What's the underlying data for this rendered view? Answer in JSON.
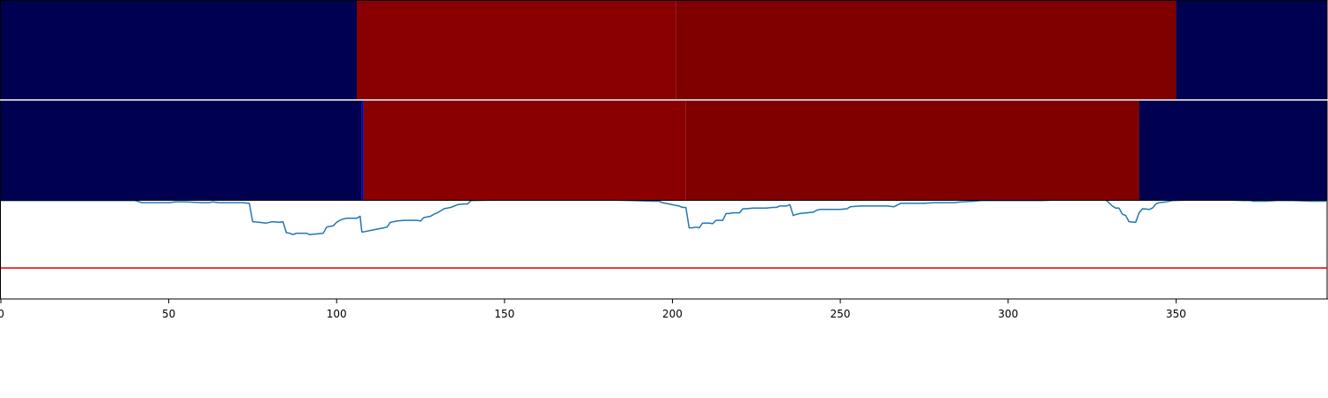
{
  "chart_data": {
    "type": "heatmap",
    "xlim": [
      0,
      395
    ],
    "ylim": [
      0,
      1
    ],
    "x_ticks": [
      0,
      50,
      100,
      150,
      200,
      250,
      300,
      350
    ],
    "x_tick_labels": [
      "0",
      "50",
      "100",
      "150",
      "200",
      "250",
      "300",
      "350"
    ],
    "grid": false,
    "legend": "none",
    "heatmap_rows": [
      {
        "segments": [
          {
            "start": 0,
            "end": 106,
            "color": "#000050"
          },
          {
            "start": 106,
            "end": 201,
            "color": "#8a0000"
          },
          {
            "start": 201,
            "end": 350,
            "color": "#800000"
          },
          {
            "start": 350,
            "end": 395,
            "color": "#000050"
          }
        ]
      },
      {
        "segments": [
          {
            "start": 0,
            "end": 107.5,
            "color": "#000050"
          },
          {
            "start": 107.5,
            "end": 108,
            "color": "#0000b0"
          },
          {
            "start": 108,
            "end": 204,
            "color": "#8a0000"
          },
          {
            "start": 204,
            "end": 339,
            "color": "#800000"
          },
          {
            "start": 339,
            "end": 395,
            "color": "#000050"
          }
        ]
      }
    ],
    "line_series": {
      "color": "#1f77b4",
      "points": [
        [
          0,
          0.99
        ],
        [
          10,
          0.99
        ],
        [
          20,
          0.99
        ],
        [
          30,
          0.99
        ],
        [
          40,
          0.99
        ],
        [
          42,
          0.96
        ],
        [
          48,
          0.96
        ],
        [
          50,
          0.96
        ],
        [
          52,
          0.97
        ],
        [
          55,
          0.97
        ],
        [
          60,
          0.96
        ],
        [
          62,
          0.96
        ],
        [
          63,
          0.97
        ],
        [
          65,
          0.96
        ],
        [
          68,
          0.96
        ],
        [
          70,
          0.96
        ],
        [
          72,
          0.96
        ],
        [
          74,
          0.95
        ],
        [
          75,
          0.68
        ],
        [
          77,
          0.67
        ],
        [
          79,
          0.66
        ],
        [
          81,
          0.68
        ],
        [
          83,
          0.67
        ],
        [
          84,
          0.68
        ],
        [
          85,
          0.52
        ],
        [
          86,
          0.51
        ],
        [
          87,
          0.49
        ],
        [
          88,
          0.51
        ],
        [
          90,
          0.51
        ],
        [
          91,
          0.51
        ],
        [
          92,
          0.49
        ],
        [
          94,
          0.5
        ],
        [
          96,
          0.51
        ],
        [
          97,
          0.6
        ],
        [
          98,
          0.61
        ],
        [
          99,
          0.62
        ],
        [
          100,
          0.67
        ],
        [
          101,
          0.7
        ],
        [
          102,
          0.72
        ],
        [
          103,
          0.73
        ],
        [
          106,
          0.73
        ],
        [
          107,
          0.76
        ],
        [
          107.5,
          0.53
        ],
        [
          108,
          0.53
        ],
        [
          110,
          0.55
        ],
        [
          112,
          0.57
        ],
        [
          114,
          0.59
        ],
        [
          115,
          0.6
        ],
        [
          116,
          0.67
        ],
        [
          118,
          0.69
        ],
        [
          120,
          0.7
        ],
        [
          122,
          0.7
        ],
        [
          124,
          0.7
        ],
        [
          125,
          0.69
        ],
        [
          126,
          0.74
        ],
        [
          128,
          0.76
        ],
        [
          129,
          0.79
        ],
        [
          130,
          0.81
        ],
        [
          132,
          0.87
        ],
        [
          134,
          0.89
        ],
        [
          136,
          0.93
        ],
        [
          138,
          0.94
        ],
        [
          139,
          0.94
        ],
        [
          140,
          0.99
        ],
        [
          150,
          1.0
        ],
        [
          160,
          1.0
        ],
        [
          170,
          1.0
        ],
        [
          180,
          1.0
        ],
        [
          188,
          0.99
        ],
        [
          194,
          0.98
        ],
        [
          196,
          0.98
        ],
        [
          197,
          0.96
        ],
        [
          199,
          0.94
        ],
        [
          201,
          0.92
        ],
        [
          202,
          0.91
        ],
        [
          203,
          0.89
        ],
        [
          204,
          0.89
        ],
        [
          205,
          0.59
        ],
        [
          206,
          0.59
        ],
        [
          207,
          0.6
        ],
        [
          208,
          0.59
        ],
        [
          209,
          0.66
        ],
        [
          211,
          0.66
        ],
        [
          212,
          0.65
        ],
        [
          213,
          0.7
        ],
        [
          214,
          0.7
        ],
        [
          215,
          0.7
        ],
        [
          216,
          0.8
        ],
        [
          217,
          0.8
        ],
        [
          218,
          0.81
        ],
        [
          220,
          0.81
        ],
        [
          221,
          0.87
        ],
        [
          222,
          0.87
        ],
        [
          224,
          0.88
        ],
        [
          226,
          0.88
        ],
        [
          228,
          0.88
        ],
        [
          230,
          0.89
        ],
        [
          231,
          0.89
        ],
        [
          232,
          0.91
        ],
        [
          234,
          0.91
        ],
        [
          235,
          0.93
        ],
        [
          236,
          0.77
        ],
        [
          237,
          0.79
        ],
        [
          238,
          0.8
        ],
        [
          240,
          0.81
        ],
        [
          242,
          0.82
        ],
        [
          243,
          0.85
        ],
        [
          244,
          0.86
        ],
        [
          246,
          0.86
        ],
        [
          248,
          0.86
        ],
        [
          250,
          0.86
        ],
        [
          252,
          0.87
        ],
        [
          253,
          0.9
        ],
        [
          256,
          0.91
        ],
        [
          258,
          0.91
        ],
        [
          260,
          0.91
        ],
        [
          262,
          0.91
        ],
        [
          264,
          0.91
        ],
        [
          266,
          0.9
        ],
        [
          268,
          0.95
        ],
        [
          272,
          0.95
        ],
        [
          275,
          0.95
        ],
        [
          278,
          0.96
        ],
        [
          280,
          0.96
        ],
        [
          284,
          0.96
        ],
        [
          286,
          0.97
        ],
        [
          290,
          0.98
        ],
        [
          292,
          0.99
        ],
        [
          300,
          0.99
        ],
        [
          305,
          0.99
        ],
        [
          310,
          0.99
        ],
        [
          315,
          1.0
        ],
        [
          320,
          1.0
        ],
        [
          325,
          1.0
        ],
        [
          329,
          1.0
        ],
        [
          330,
          0.96
        ],
        [
          331,
          0.91
        ],
        [
          332,
          0.88
        ],
        [
          333,
          0.88
        ],
        [
          334,
          0.79
        ],
        [
          335,
          0.77
        ],
        [
          336,
          0.68
        ],
        [
          338,
          0.67
        ],
        [
          339,
          0.81
        ],
        [
          340,
          0.87
        ],
        [
          342,
          0.86
        ],
        [
          343,
          0.88
        ],
        [
          344,
          0.94
        ],
        [
          345,
          0.96
        ],
        [
          347,
          0.97
        ],
        [
          349,
          0.99
        ],
        [
          355,
          1.0
        ],
        [
          360,
          1.0
        ],
        [
          365,
          1.0
        ],
        [
          370,
          0.99
        ],
        [
          372,
          0.99
        ],
        [
          373,
          0.98
        ],
        [
          377,
          0.98
        ],
        [
          380,
          0.99
        ],
        [
          385,
          0.99
        ],
        [
          390,
          0.98
        ],
        [
          395,
          0.98
        ]
      ]
    },
    "threshold": {
      "y": 0.0,
      "color": "#dd0000"
    }
  }
}
